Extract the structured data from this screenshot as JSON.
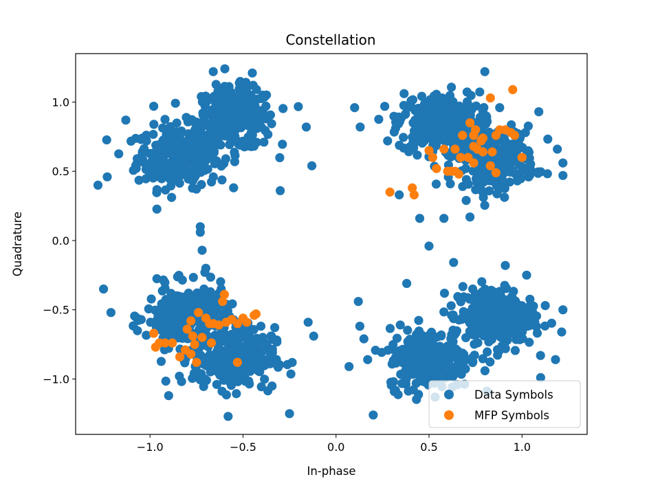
{
  "chart_data": {
    "type": "scatter",
    "title": "Constellation",
    "xlabel": "In-phase",
    "ylabel": "Quadrature",
    "xlim": [
      -1.4,
      1.35
    ],
    "ylim": [
      -1.4,
      1.35
    ],
    "xticks": [
      -1.0,
      -0.5,
      0.0,
      0.5,
      1.0
    ],
    "xtick_labels": [
      "−1.0",
      "−0.5",
      "0.0",
      "0.5",
      "1.0"
    ],
    "yticks": [
      -1.0,
      -0.5,
      0.0,
      0.5,
      1.0
    ],
    "ytick_labels": [
      "−1.0",
      "−0.5",
      "0.0",
      "0.5",
      "1.0"
    ],
    "grid": false,
    "legend_position": "bottom-right",
    "series": [
      {
        "name": "Data Symbols",
        "color": "#1f77b4",
        "clusters": [
          {
            "centers": [
              [
                -0.85,
                0.6
              ],
              [
                -0.55,
                0.88
              ]
            ],
            "count": 560
          },
          {
            "centers": [
              [
                0.55,
                0.85
              ],
              [
                0.85,
                0.6
              ]
            ],
            "count": 560
          },
          {
            "centers": [
              [
                -0.8,
                -0.55
              ],
              [
                -0.55,
                -0.85
              ]
            ],
            "count": 560
          },
          {
            "centers": [
              [
                0.5,
                -0.85
              ],
              [
                0.85,
                -0.55
              ]
            ],
            "count": 560
          }
        ],
        "points": [
          [
            -1.28,
            0.4
          ],
          [
            -1.23,
            0.46
          ],
          [
            -0.13,
            0.54
          ],
          [
            -0.16,
            0.82
          ],
          [
            -0.66,
            1.22
          ],
          [
            -0.45,
            1.21
          ],
          [
            0.1,
            0.96
          ],
          [
            0.13,
            0.82
          ],
          [
            0.8,
            1.22
          ],
          [
            1.22,
            0.47
          ],
          [
            1.22,
            0.56
          ],
          [
            -1.25,
            -0.35
          ],
          [
            -1.21,
            -0.52
          ],
          [
            -0.12,
            -0.69
          ],
          [
            -0.15,
            -0.59
          ],
          [
            -0.58,
            -1.27
          ],
          [
            -0.25,
            -1.25
          ],
          [
            0.5,
            -0.04
          ],
          [
            0.2,
            -1.26
          ],
          [
            0.07,
            -0.91
          ],
          [
            1.1,
            -0.99
          ],
          [
            1.22,
            -0.5
          ],
          [
            1.18,
            -0.86
          ],
          [
            -0.72,
            -0.07
          ],
          [
            -0.7,
            -0.2
          ],
          [
            -0.73,
            0.06
          ],
          [
            -0.73,
            0.1
          ],
          [
            -0.71,
            -0.35
          ],
          [
            -0.3,
            0.36
          ],
          [
            -0.98,
            0.97
          ],
          [
            -1.13,
            0.87
          ],
          [
            -0.46,
            1.05
          ],
          [
            0.45,
            0.16
          ],
          [
            0.58,
            0.16
          ],
          [
            0.34,
            0.33
          ],
          [
            0.72,
            0.17
          ],
          [
            0.88,
            0.96
          ],
          [
            1.09,
            0.93
          ],
          [
            1.19,
            0.66
          ],
          [
            0.91,
            -0.18
          ],
          [
            0.38,
            -0.31
          ],
          [
            0.15,
            -0.71
          ],
          [
            0.17,
            -0.86
          ],
          [
            0.12,
            -0.44
          ],
          [
            -0.35,
            -0.69
          ],
          [
            -0.9,
            -1.12
          ]
        ]
      },
      {
        "name": "MFP Symbols",
        "color": "#ff7f0e",
        "points": [
          [
            0.83,
            1.03
          ],
          [
            0.95,
            1.09
          ],
          [
            0.72,
            0.85
          ],
          [
            0.75,
            0.8
          ],
          [
            0.68,
            0.76
          ],
          [
            0.74,
            0.76
          ],
          [
            0.78,
            0.72
          ],
          [
            0.79,
            0.74
          ],
          [
            0.86,
            0.76
          ],
          [
            0.88,
            0.8
          ],
          [
            0.91,
            0.8
          ],
          [
            0.94,
            0.78
          ],
          [
            0.96,
            0.76
          ],
          [
            0.5,
            0.65
          ],
          [
            0.52,
            0.6
          ],
          [
            0.58,
            0.66
          ],
          [
            0.64,
            0.66
          ],
          [
            0.67,
            0.6
          ],
          [
            0.71,
            0.6
          ],
          [
            0.74,
            0.68
          ],
          [
            0.76,
            0.66
          ],
          [
            0.79,
            0.64
          ],
          [
            0.84,
            0.64
          ],
          [
            1.0,
            0.6
          ],
          [
            0.54,
            0.52
          ],
          [
            0.6,
            0.5
          ],
          [
            0.62,
            0.5
          ],
          [
            0.64,
            0.5
          ],
          [
            0.66,
            0.48
          ],
          [
            0.74,
            0.56
          ],
          [
            0.83,
            0.54
          ],
          [
            0.86,
            0.49
          ],
          [
            0.29,
            0.35
          ],
          [
            0.41,
            0.38
          ],
          [
            0.42,
            0.33
          ],
          [
            -0.98,
            -0.67
          ],
          [
            -0.95,
            -0.74
          ],
          [
            -0.97,
            -0.77
          ],
          [
            -0.92,
            -0.74
          ],
          [
            -0.88,
            -0.74
          ],
          [
            -0.84,
            -0.84
          ],
          [
            -0.81,
            -0.79
          ],
          [
            -0.78,
            -0.82
          ],
          [
            -0.76,
            -0.75
          ],
          [
            -0.77,
            -0.69
          ],
          [
            -0.8,
            -0.64
          ],
          [
            -0.78,
            -0.58
          ],
          [
            -0.74,
            -0.52
          ],
          [
            -0.7,
            -0.56
          ],
          [
            -0.68,
            -0.6
          ],
          [
            -0.63,
            -0.61
          ],
          [
            -0.59,
            -0.59
          ],
          [
            -0.56,
            -0.57
          ],
          [
            -0.53,
            -0.6
          ],
          [
            -0.5,
            -0.56
          ],
          [
            -0.48,
            -0.59
          ],
          [
            -0.44,
            -0.54
          ],
          [
            -0.6,
            -0.39
          ],
          [
            -0.61,
            -0.44
          ],
          [
            -0.43,
            -0.53
          ],
          [
            -0.66,
            -0.6
          ],
          [
            -0.67,
            -0.74
          ],
          [
            -0.75,
            -0.88
          ],
          [
            -0.53,
            -0.88
          ],
          [
            -0.72,
            -0.7
          ]
        ]
      }
    ]
  }
}
